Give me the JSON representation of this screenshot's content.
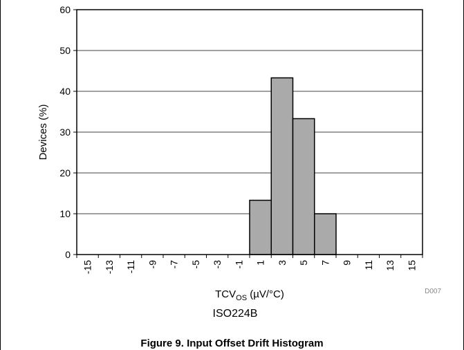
{
  "chart_data": {
    "type": "bar",
    "categories": [
      "-15",
      "-13",
      "-11",
      "-9",
      "-7",
      "-5",
      "-3",
      "-1",
      "1",
      "3",
      "5",
      "7",
      "9",
      "11",
      "13",
      "15"
    ],
    "values": [
      0,
      0,
      0,
      0,
      0,
      0,
      0,
      0,
      13.3,
      43.3,
      33.3,
      10,
      0,
      0,
      0,
      0
    ],
    "ylabel": "Devices (%)",
    "xlabel_main": "TCV",
    "xlabel_sub": "OS",
    "xlabel_unit": " (µV/°C)",
    "ylim": [
      0,
      60
    ],
    "yticks": [
      0,
      10,
      20,
      30,
      40,
      50,
      60
    ],
    "grid": true,
    "bar_color": "#aaaaaa",
    "subtitle": "ISO224B",
    "code": "D007"
  },
  "caption": "Figure 9. Input Offset Drift Histogram"
}
